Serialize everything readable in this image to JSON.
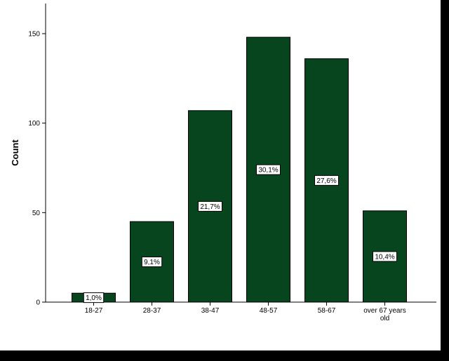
{
  "chart_data": {
    "type": "bar",
    "title": "",
    "xlabel": "",
    "ylabel": "Count",
    "ylim": [
      0,
      165
    ],
    "yticks": [
      0,
      50,
      100,
      150
    ],
    "grid": false,
    "legend": "none",
    "bar_color": "#07451f",
    "categories": [
      "18-27",
      "28-37",
      "38-47",
      "48-57",
      "58-67",
      "over 67 years old"
    ],
    "category_lines": [
      [
        "18-27"
      ],
      [
        "28-37"
      ],
      [
        "38-47"
      ],
      [
        "48-57"
      ],
      [
        "58-67"
      ],
      [
        "over 67 years",
        "old"
      ]
    ],
    "values": [
      5,
      45,
      107,
      148,
      136,
      51
    ],
    "data_labels": [
      "1,0%",
      "9,1%",
      "21,7%",
      "30,1%",
      "27,6%",
      "10,4%"
    ]
  }
}
